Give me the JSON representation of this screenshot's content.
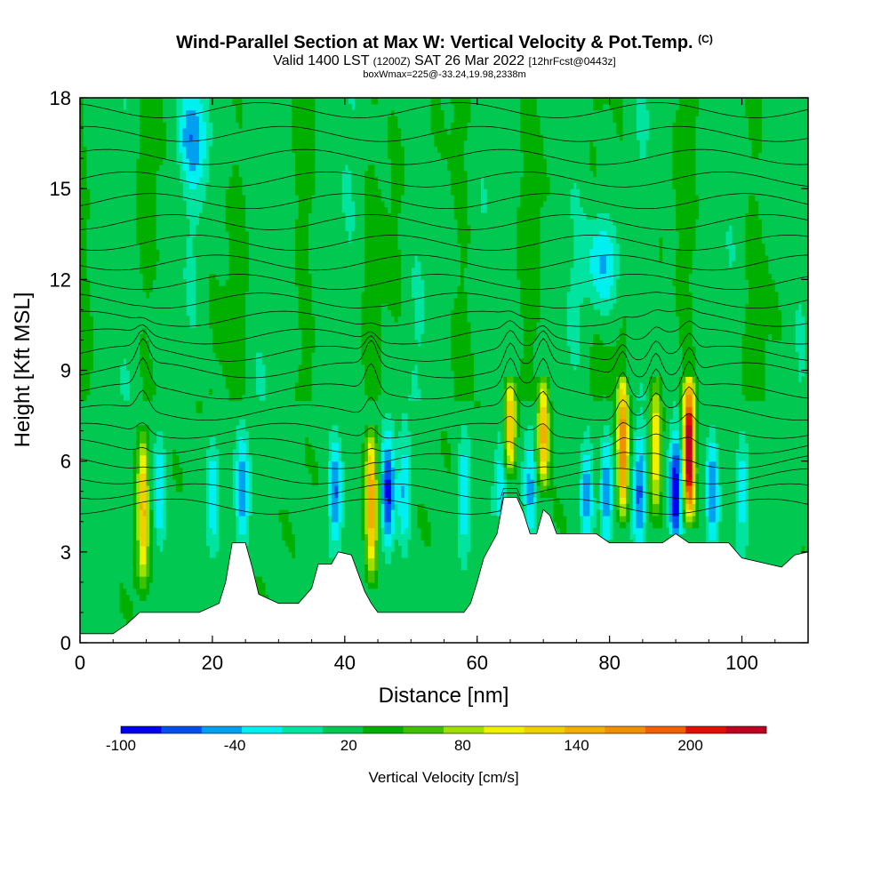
{
  "header": {
    "title": "Wind-Parallel Section at Max W: Vertical Velocity & Pot.Temp.",
    "copyright": "(C)",
    "valid_prefix": "Valid 1400 LST",
    "valid_utc": "(1200Z)",
    "valid_suffix": "SAT 26 Mar 2022",
    "forecast": "[12hrFcst@0443z]",
    "boxinfo": "boxWmax=225@-33.24,19.98,2338m"
  },
  "colors": {
    "background_field": "#00e4a0",
    "terrain": "#ffffff",
    "contours": "#000000",
    "palette": [
      "#0000f0",
      "#0050f0",
      "#00a0f0",
      "#00f0f0",
      "#00e4a0",
      "#00c850",
      "#00b000",
      "#40c000",
      "#a0e000",
      "#f0f000",
      "#f0d000",
      "#f0b000",
      "#f09000",
      "#f06000",
      "#e01000",
      "#c00020"
    ]
  },
  "chart_data": {
    "type": "heatmap",
    "xlabel": "Distance [nm]",
    "ylabel": "Height [Kft MSL]",
    "xlim": [
      0,
      110
    ],
    "ylim": [
      0,
      18
    ],
    "xticks": [
      "0",
      "20",
      "40",
      "60",
      "80",
      "100"
    ],
    "yticks": [
      "0",
      "3",
      "6",
      "9",
      "12",
      "15",
      "18"
    ],
    "colorbar": {
      "title": "Vertical Velocity [cm/s]",
      "tick_labels": [
        "-100",
        "-40",
        "20",
        "80",
        "140",
        "200"
      ],
      "tick_values": [
        -100,
        -40,
        20,
        80,
        140,
        200
      ],
      "range": [
        -100,
        240
      ],
      "bin_width": 20
    },
    "terrain_kft": [
      [
        0,
        0.3
      ],
      [
        5,
        0.3
      ],
      [
        7,
        0.6
      ],
      [
        9,
        1.0
      ],
      [
        12,
        1.0
      ],
      [
        18,
        1.0
      ],
      [
        21,
        1.3
      ],
      [
        22,
        2.0
      ],
      [
        23,
        3.3
      ],
      [
        25,
        3.3
      ],
      [
        26,
        2.5
      ],
      [
        27,
        1.6
      ],
      [
        30,
        1.3
      ],
      [
        33,
        1.3
      ],
      [
        35,
        1.8
      ],
      [
        36,
        2.6
      ],
      [
        38,
        2.6
      ],
      [
        39,
        3.0
      ],
      [
        41,
        2.9
      ],
      [
        43,
        1.7
      ],
      [
        44,
        1.3
      ],
      [
        45,
        1.0
      ],
      [
        52,
        1.0
      ],
      [
        58,
        1.0
      ],
      [
        59,
        1.3
      ],
      [
        60,
        2.0
      ],
      [
        61,
        2.8
      ],
      [
        63,
        3.6
      ],
      [
        64,
        4.8
      ],
      [
        66,
        4.8
      ],
      [
        67,
        4.3
      ],
      [
        68,
        3.6
      ],
      [
        69,
        3.6
      ],
      [
        70,
        4.4
      ],
      [
        71,
        4.2
      ],
      [
        72,
        3.6
      ],
      [
        78,
        3.6
      ],
      [
        80,
        3.3
      ],
      [
        88,
        3.3
      ],
      [
        90,
        3.6
      ],
      [
        92,
        3.3
      ],
      [
        98,
        3.3
      ],
      [
        100,
        2.8
      ],
      [
        104,
        2.6
      ],
      [
        106,
        2.5
      ],
      [
        108,
        2.9
      ],
      [
        110,
        3.0
      ]
    ],
    "updrafts": [
      {
        "x": 9.5,
        "w": 110
      },
      {
        "x": 44.0,
        "w": 130
      },
      {
        "x": 65.0,
        "w": 120
      },
      {
        "x": 70.0,
        "w": 120
      },
      {
        "x": 82.0,
        "w": 150
      },
      {
        "x": 87.0,
        "w": 90
      },
      {
        "x": 92.0,
        "w": 225
      }
    ],
    "downdrafts": [
      {
        "x": 12.0,
        "w": -40
      },
      {
        "x": 20.0,
        "w": -30
      },
      {
        "x": 24.5,
        "w": -50
      },
      {
        "x": 38.5,
        "w": -60
      },
      {
        "x": 46.5,
        "w": -80
      },
      {
        "x": 49.0,
        "w": -40
      },
      {
        "x": 58.0,
        "w": -40
      },
      {
        "x": 63.5,
        "w": -30
      },
      {
        "x": 68.0,
        "w": -40
      },
      {
        "x": 76.5,
        "w": -50
      },
      {
        "x": 79.5,
        "w": -50
      },
      {
        "x": 84.5,
        "w": -60
      },
      {
        "x": 90.0,
        "w": -100
      },
      {
        "x": 95.5,
        "w": -60
      },
      {
        "x": 100.0,
        "w": -30
      }
    ],
    "upper_negative_patches": [
      {
        "x": 17,
        "y": 16.8,
        "w": -40
      },
      {
        "x": 79,
        "y": 12.5,
        "w": -40
      }
    ]
  }
}
